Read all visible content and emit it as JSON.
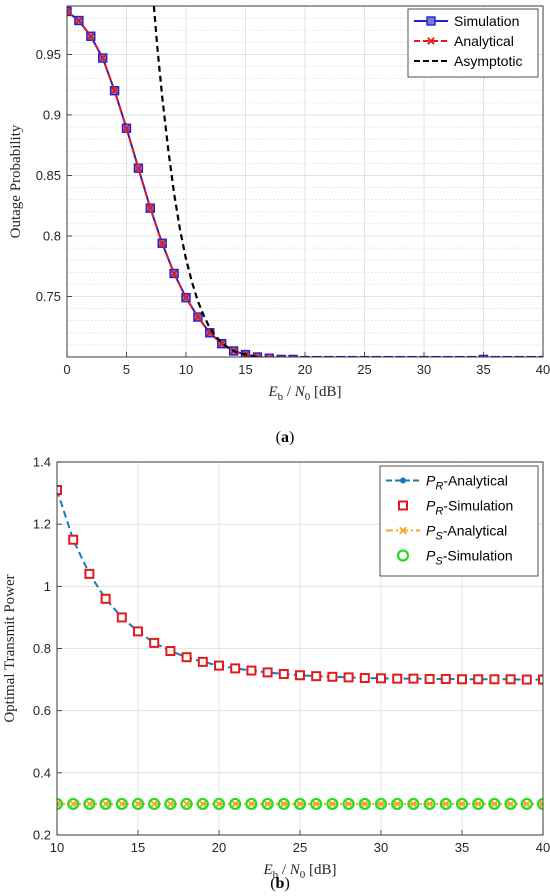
{
  "chart_data": [
    {
      "type": "line",
      "panel": "a",
      "caption": "(a)",
      "ylabel": "Outage Probability",
      "xlabel": {
        "e": "E",
        "b": "b",
        "n": "N",
        "zero": "0",
        "unit": " [dB]"
      },
      "xlim": [
        0,
        40
      ],
      "ylim": [
        0.7,
        0.99
      ],
      "xticks": [
        0,
        5,
        10,
        15,
        20,
        25,
        30,
        35,
        40
      ],
      "yticks": [
        0.75,
        0.8,
        0.85,
        0.9,
        0.95
      ],
      "minor_yticks": [
        0.71,
        0.72,
        0.73,
        0.74,
        0.76,
        0.77,
        0.78,
        0.79,
        0.81,
        0.82,
        0.83,
        0.84,
        0.86,
        0.87,
        0.88,
        0.89,
        0.91,
        0.92,
        0.93,
        0.94,
        0.96,
        0.97,
        0.98
      ],
      "grid": true,
      "legend_position": "top-right",
      "series": [
        {
          "name": "Simulation",
          "color": "#1f1fd6",
          "style": "solid",
          "marker": "square",
          "x": [
            0,
            1,
            2,
            3,
            4,
            5,
            6,
            7,
            8,
            9,
            10,
            11,
            12,
            13,
            14,
            15,
            16,
            17,
            18,
            19,
            20,
            21,
            22,
            23,
            24,
            25,
            26,
            27,
            28,
            29,
            30,
            31,
            32,
            33,
            34,
            35,
            36,
            37,
            38,
            39,
            40
          ],
          "y": [
            0.9855,
            0.978,
            0.965,
            0.947,
            0.92,
            0.889,
            0.856,
            0.823,
            0.794,
            0.769,
            0.749,
            0.733,
            0.72,
            0.711,
            0.705,
            0.702,
            0.7,
            0.699,
            0.698,
            0.698,
            0.697,
            0.697,
            0.697,
            0.697,
            0.697,
            0.697,
            0.697,
            0.697,
            0.697,
            0.697,
            0.697,
            0.697,
            0.697,
            0.697,
            0.697,
            0.698,
            0.697,
            0.697,
            0.697,
            0.697,
            0.697
          ]
        },
        {
          "name": "Analytical",
          "color": "#e01b1b",
          "style": "dashed",
          "marker": "x",
          "x": [
            0,
            1,
            2,
            3,
            4,
            5,
            6,
            7,
            8,
            9,
            10,
            11,
            12,
            13,
            14,
            15,
            16,
            17,
            18,
            19,
            20,
            21,
            22,
            23,
            24,
            25,
            26,
            27,
            28,
            29,
            30,
            31,
            32,
            33,
            34,
            35,
            36,
            37,
            38,
            39,
            40
          ],
          "y": [
            0.9855,
            0.978,
            0.965,
            0.947,
            0.92,
            0.889,
            0.856,
            0.823,
            0.794,
            0.769,
            0.749,
            0.733,
            0.72,
            0.711,
            0.705,
            0.702,
            0.7,
            0.699,
            0.698,
            0.698,
            0.697,
            0.697,
            0.697,
            0.697,
            0.697,
            0.697,
            0.697,
            0.697,
            0.697,
            0.697,
            0.697,
            0.697,
            0.697,
            0.697,
            0.697,
            0.697,
            0.697,
            0.697,
            0.697,
            0.697,
            0.697
          ]
        },
        {
          "name": "Asymptotic",
          "color": "#000000",
          "style": "dashed",
          "marker": "none",
          "x": [
            7.3,
            7.6,
            8,
            8.5,
            9,
            9.5,
            10,
            10.5,
            11,
            11.5,
            12,
            12.5,
            13,
            13.5,
            14,
            14.5,
            15,
            16,
            17,
            18,
            20,
            25,
            30,
            35,
            40
          ],
          "y": [
            0.99,
            0.955,
            0.915,
            0.872,
            0.835,
            0.805,
            0.781,
            0.762,
            0.746,
            0.734,
            0.724,
            0.717,
            0.712,
            0.708,
            0.705,
            0.703,
            0.702,
            0.7,
            0.699,
            0.698,
            0.697,
            0.697,
            0.697,
            0.697,
            0.697
          ]
        }
      ]
    },
    {
      "type": "line",
      "panel": "b",
      "caption": "(b)",
      "ylabel": "Optimal Transmit Power",
      "xlabel": {
        "e": "E",
        "b": "b",
        "n": "N",
        "zero": "0",
        "unit": " [dB]"
      },
      "xlim": [
        10,
        40
      ],
      "ylim": [
        0.2,
        1.4
      ],
      "xticks": [
        10,
        15,
        20,
        25,
        30,
        35,
        40
      ],
      "yticks": [
        0.2,
        0.4,
        0.6,
        0.8,
        1,
        1.2,
        1.4
      ],
      "grid": true,
      "legend_position": "top-right",
      "series": [
        {
          "name": "P_R-Analytical",
          "label_main": "P",
          "label_sub": "R",
          "label_suffix": "-Analytical",
          "color": "#1f77b4",
          "style": "dashed",
          "marker": "dot",
          "x": [
            10,
            11,
            12,
            13,
            14,
            15,
            16,
            17,
            18,
            19,
            20,
            21,
            22,
            23,
            24,
            25,
            26,
            27,
            28,
            29,
            30,
            31,
            32,
            33,
            34,
            35,
            36,
            37,
            38,
            39,
            40
          ],
          "y": [
            1.31,
            1.15,
            1.04,
            0.96,
            0.9,
            0.855,
            0.818,
            0.792,
            0.772,
            0.757,
            0.745,
            0.736,
            0.729,
            0.723,
            0.718,
            0.714,
            0.711,
            0.709,
            0.707,
            0.705,
            0.704,
            0.703,
            0.703,
            0.702,
            0.702,
            0.701,
            0.701,
            0.701,
            0.701,
            0.7,
            0.7
          ]
        },
        {
          "name": "P_R-Simulation",
          "label_main": "P",
          "label_sub": "R",
          "label_suffix": "-Simulation",
          "color": "#e31a1c",
          "style": "none",
          "marker": "square",
          "x": [
            10,
            11,
            12,
            13,
            14,
            15,
            16,
            17,
            18,
            19,
            20,
            21,
            22,
            23,
            24,
            25,
            26,
            27,
            28,
            29,
            30,
            31,
            32,
            33,
            34,
            35,
            36,
            37,
            38,
            39,
            40
          ],
          "y": [
            1.31,
            1.15,
            1.04,
            0.96,
            0.9,
            0.855,
            0.818,
            0.792,
            0.772,
            0.757,
            0.745,
            0.736,
            0.729,
            0.723,
            0.718,
            0.714,
            0.711,
            0.709,
            0.707,
            0.705,
            0.704,
            0.703,
            0.703,
            0.702,
            0.702,
            0.701,
            0.701,
            0.701,
            0.701,
            0.7,
            0.7
          ]
        },
        {
          "name": "P_S-Analytical",
          "label_main": "P",
          "label_sub": "S",
          "label_suffix": "-Analytical",
          "color": "#f5a623",
          "style": "dashdot",
          "marker": "x",
          "x": [
            10,
            11,
            12,
            13,
            14,
            15,
            16,
            17,
            18,
            19,
            20,
            21,
            22,
            23,
            24,
            25,
            26,
            27,
            28,
            29,
            30,
            31,
            32,
            33,
            34,
            35,
            36,
            37,
            38,
            39,
            40
          ],
          "y": [
            0.3,
            0.3,
            0.3,
            0.3,
            0.3,
            0.3,
            0.3,
            0.3,
            0.3,
            0.3,
            0.3,
            0.3,
            0.3,
            0.3,
            0.3,
            0.3,
            0.3,
            0.3,
            0.3,
            0.3,
            0.3,
            0.3,
            0.3,
            0.3,
            0.3,
            0.3,
            0.3,
            0.3,
            0.3,
            0.3,
            0.3
          ]
        },
        {
          "name": "P_S-Simulation",
          "label_main": "P",
          "label_sub": "S",
          "label_suffix": "-Simulation",
          "color": "#22dd22",
          "style": "none",
          "marker": "circle",
          "x": [
            10,
            11,
            12,
            13,
            14,
            15,
            16,
            17,
            18,
            19,
            20,
            21,
            22,
            23,
            24,
            25,
            26,
            27,
            28,
            29,
            30,
            31,
            32,
            33,
            34,
            35,
            36,
            37,
            38,
            39,
            40
          ],
          "y": [
            0.3,
            0.3,
            0.3,
            0.3,
            0.3,
            0.3,
            0.3,
            0.3,
            0.3,
            0.3,
            0.3,
            0.3,
            0.3,
            0.3,
            0.3,
            0.3,
            0.3,
            0.3,
            0.3,
            0.3,
            0.3,
            0.3,
            0.3,
            0.3,
            0.3,
            0.3,
            0.3,
            0.3,
            0.3,
            0.3,
            0.3
          ]
        }
      ]
    }
  ]
}
